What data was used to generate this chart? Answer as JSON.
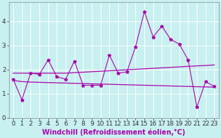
{
  "xlabel": "Windchill (Refroidissement éolien,°C)",
  "background_color": "#c8f0f0",
  "grid_color": "#ffffff",
  "line_color": "#aa00aa",
  "x": [
    0,
    1,
    2,
    3,
    4,
    5,
    6,
    7,
    8,
    9,
    10,
    11,
    12,
    13,
    14,
    15,
    16,
    17,
    18,
    19,
    20,
    21,
    22,
    23
  ],
  "y_main": [
    1.6,
    0.75,
    1.85,
    1.8,
    2.4,
    1.7,
    1.6,
    2.35,
    1.35,
    1.35,
    1.35,
    2.6,
    1.85,
    1.9,
    2.95,
    4.4,
    3.35,
    3.8,
    3.25,
    3.05,
    2.4,
    0.45,
    1.5,
    1.3
  ],
  "y_upper": [
    1.85,
    1.85,
    1.85,
    1.85,
    1.85,
    1.85,
    1.85,
    1.87,
    1.89,
    1.91,
    1.93,
    1.95,
    1.97,
    1.99,
    2.01,
    2.03,
    2.05,
    2.07,
    2.09,
    2.11,
    2.13,
    2.15,
    2.17,
    2.19
  ],
  "y_lower": [
    1.55,
    1.5,
    1.48,
    1.47,
    1.46,
    1.45,
    1.44,
    1.43,
    1.42,
    1.41,
    1.4,
    1.39,
    1.38,
    1.37,
    1.36,
    1.35,
    1.34,
    1.33,
    1.32,
    1.31,
    1.3,
    1.29,
    1.28,
    1.27
  ],
  "ylim": [
    0,
    4.8
  ],
  "yticks": [
    0,
    1,
    2,
    3,
    4
  ],
  "xlim": [
    -0.5,
    23.5
  ],
  "xticks": [
    0,
    1,
    2,
    3,
    4,
    5,
    6,
    7,
    8,
    9,
    10,
    11,
    12,
    13,
    14,
    15,
    16,
    17,
    18,
    19,
    20,
    21,
    22,
    23
  ],
  "xlabel_fontsize": 7,
  "tick_fontsize": 6.5
}
